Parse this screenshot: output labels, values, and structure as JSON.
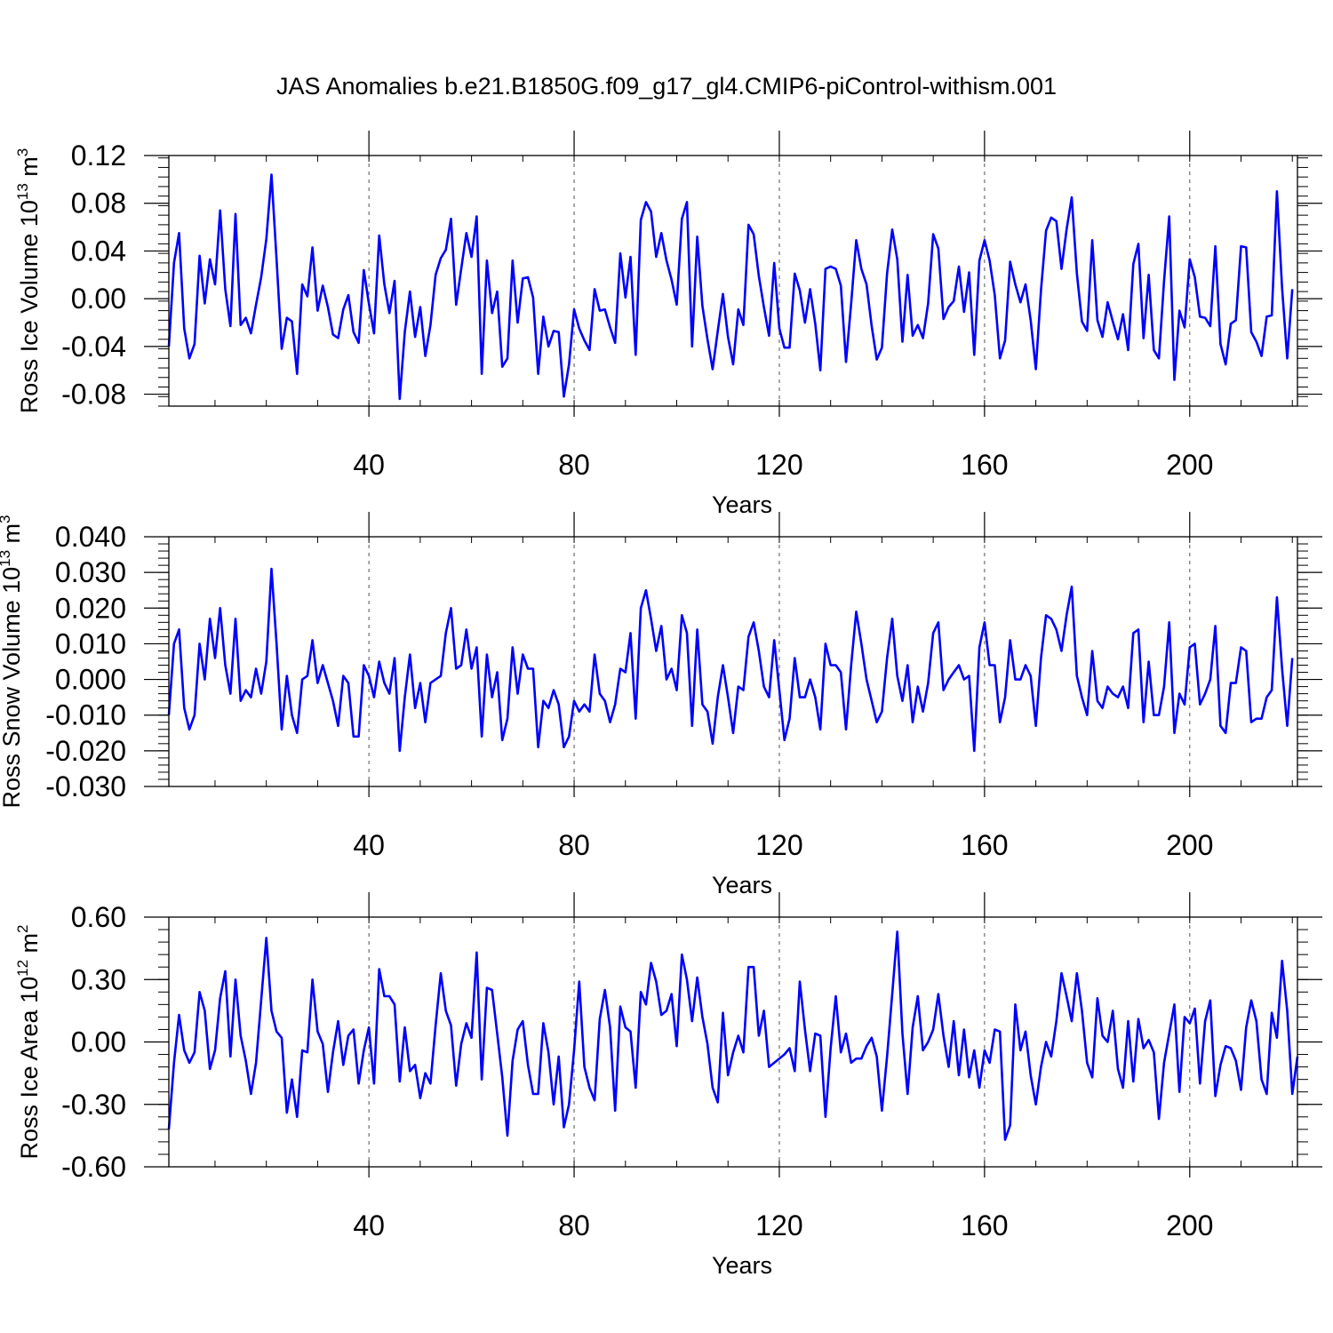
{
  "figure": {
    "title": "JAS Anomalies b.e21.B1850G.f09_g17_gl4.CMIP6-piControl-withism.001"
  },
  "style": {
    "line_color": "#0000ff",
    "axis_color": "#000000",
    "grid_color": "#555555"
  },
  "chart_data": [
    {
      "type": "line",
      "xlabel": "Years",
      "ylabel": "Ross Ice Volume 10",
      "ylabel_exp": "13",
      "ylabel_unit": " m",
      "ylabel_unit_exp": "3",
      "xlim": [
        1,
        221
      ],
      "ylim": [
        -0.09,
        0.12
      ],
      "xticks": [
        40,
        80,
        120,
        160,
        200
      ],
      "xtick_labels": [
        "40",
        "80",
        "120",
        "160",
        "200"
      ],
      "yticks": [
        -0.08,
        -0.04,
        0.0,
        0.04,
        0.08,
        0.12
      ],
      "ytick_labels": [
        "-0.08",
        "-0.04",
        "0.00",
        "0.04",
        "0.08",
        "0.12"
      ],
      "x_grid_dashed": true,
      "series": [
        {
          "values": [
            -0.04,
            0.03,
            0.055,
            -0.025,
            -0.05,
            -0.038,
            0.036,
            -0.004,
            0.033,
            0.012,
            0.074,
            0.008,
            -0.023,
            0.071,
            -0.022,
            -0.016,
            -0.029,
            -0.005,
            0.018,
            0.05,
            0.104,
            0.033,
            -0.042,
            -0.016,
            -0.019,
            -0.063,
            0.012,
            0.002,
            0.043,
            -0.01,
            0.011,
            -0.007,
            -0.03,
            -0.033,
            -0.009,
            0.003,
            -0.028,
            -0.037,
            0.024,
            -0.004,
            -0.029,
            0.053,
            0.012,
            -0.012,
            0.015,
            -0.084,
            -0.028,
            0.006,
            -0.032,
            -0.007,
            -0.048,
            -0.022,
            0.02,
            0.034,
            0.041,
            0.067,
            -0.005,
            0.025,
            0.055,
            0.035,
            0.069,
            -0.063,
            0.032,
            -0.012,
            0.006,
            -0.057,
            -0.05,
            0.032,
            -0.02,
            0.017,
            0.018,
            0.001,
            -0.063,
            -0.015,
            -0.04,
            -0.027,
            -0.028,
            -0.082,
            -0.055,
            -0.009,
            -0.025,
            -0.035,
            -0.043,
            0.008,
            -0.01,
            -0.009,
            -0.024,
            -0.037,
            0.038,
            0.001,
            0.035,
            -0.047,
            0.066,
            0.081,
            0.073,
            0.035,
            0.055,
            0.032,
            0.016,
            -0.005,
            0.067,
            0.081,
            -0.04,
            0.052,
            -0.006,
            -0.034,
            -0.059,
            -0.027,
            0.004,
            -0.032,
            -0.055,
            -0.009,
            -0.022,
            0.062,
            0.054,
            0.019,
            -0.007,
            -0.031,
            0.03,
            -0.025,
            -0.041,
            -0.041,
            0.021,
            0.007,
            -0.02,
            0.008,
            -0.021,
            -0.06,
            0.025,
            0.027,
            0.025,
            0.011,
            -0.053,
            -0.004,
            0.049,
            0.025,
            0.012,
            -0.023,
            -0.051,
            -0.041,
            0.021,
            0.058,
            0.033,
            -0.036,
            0.02,
            -0.031,
            -0.022,
            -0.033,
            -0.004,
            0.054,
            0.042,
            -0.017,
            -0.007,
            -0.002,
            0.027,
            -0.011,
            0.022,
            -0.047,
            0.032,
            0.049,
            0.032,
            0.003,
            -0.05,
            -0.035,
            0.031,
            0.012,
            -0.003,
            0.012,
            -0.018,
            -0.059,
            0.007,
            0.057,
            0.068,
            0.065,
            0.025,
            0.058,
            0.085,
            0.021,
            -0.019,
            -0.027,
            0.049,
            -0.018,
            -0.032,
            -0.003,
            -0.019,
            -0.034,
            -0.013,
            -0.043,
            0.029,
            0.046,
            -0.033,
            0.02,
            -0.043,
            -0.05,
            0.015,
            0.069,
            -0.068,
            -0.01,
            -0.024,
            0.033,
            0.018,
            -0.015,
            -0.016,
            -0.023,
            0.044,
            -0.038,
            -0.055,
            -0.021,
            -0.018,
            0.044,
            0.043,
            -0.028,
            -0.036,
            -0.048,
            -0.015,
            -0.014,
            0.09,
            0.009,
            -0.05,
            0.008
          ]
        }
      ]
    },
    {
      "type": "line",
      "xlabel": "Years",
      "ylabel": "Ross Snow Volume 10",
      "ylabel_exp": "13",
      "ylabel_unit": " m",
      "ylabel_unit_exp": "3",
      "xlim": [
        1,
        221
      ],
      "ylim": [
        -0.03,
        0.04
      ],
      "xticks": [
        40,
        80,
        120,
        160,
        200
      ],
      "xtick_labels": [
        "40",
        "80",
        "120",
        "160",
        "200"
      ],
      "yticks": [
        -0.03,
        -0.02,
        -0.01,
        0.0,
        0.01,
        0.02,
        0.03,
        0.04
      ],
      "ytick_labels": [
        "-0.030",
        "-0.020",
        "-0.010",
        "0.000",
        "0.010",
        "0.020",
        "0.030",
        "0.040"
      ],
      "x_grid_dashed": true,
      "series": [
        {
          "values": [
            -0.01,
            0.01,
            0.014,
            -0.008,
            -0.014,
            -0.01,
            0.01,
            0,
            0.017,
            0.006,
            0.02,
            0.004,
            -0.004,
            0.017,
            -0.006,
            -0.003,
            -0.005,
            0.003,
            -0.004,
            0.005,
            0.031,
            0.01,
            -0.014,
            0.001,
            -0.01,
            -0.015,
            0,
            0.001,
            0.011,
            -0.001,
            0.004,
            -0.001,
            -0.006,
            -0.013,
            0.001,
            -0.001,
            -0.016,
            -0.016,
            0.004,
            0.001,
            -0.005,
            0.005,
            -0.001,
            -0.004,
            0.006,
            -0.02,
            -0.005,
            0.007,
            -0.008,
            -0.001,
            -0.012,
            -0.001,
            0,
            0.001,
            0.013,
            0.02,
            0.003,
            0.004,
            0.014,
            0.003,
            0.009,
            -0.016,
            0.007,
            -0.005,
            0.002,
            -0.017,
            -0.011,
            0.009,
            -0.004,
            0.007,
            0.003,
            0.003,
            -0.019,
            -0.006,
            -0.008,
            -0.003,
            -0.007,
            -0.019,
            -0.016,
            -0.006,
            -0.009,
            -0.007,
            -0.009,
            0.007,
            -0.004,
            -0.006,
            -0.012,
            -0.007,
            0.003,
            0.002,
            0.013,
            -0.011,
            0.02,
            0.025,
            0.017,
            0.008,
            0.015,
            0,
            0.003,
            -0.003,
            0.018,
            0.013,
            -0.013,
            0.014,
            -0.007,
            -0.009,
            -0.018,
            -0.005,
            0.004,
            -0.005,
            -0.015,
            -0.002,
            -0.003,
            0.012,
            0.016,
            0.008,
            -0.002,
            -0.005,
            0.011,
            -0.003,
            -0.017,
            -0.011,
            0.006,
            -0.005,
            -0.005,
            0,
            -0.005,
            -0.014,
            0.01,
            0.004,
            0.004,
            0.002,
            -0.014,
            0.004,
            0.019,
            0.01,
            0,
            -0.006,
            -0.012,
            -0.009,
            0.006,
            0.017,
            0.001,
            -0.006,
            0.004,
            -0.012,
            -0.002,
            -0.009,
            -0.001,
            0.013,
            0.016,
            -0.003,
            0,
            0.002,
            0.004,
            0,
            0.001,
            -0.02,
            0.009,
            0.016,
            0.004,
            0.004,
            -0.012,
            -0.005,
            0.011,
            0,
            0,
            0.004,
            0.001,
            -0.013,
            0.006,
            0.018,
            0.017,
            0.014,
            0.008,
            0.018,
            0.026,
            0.001,
            -0.005,
            -0.01,
            0.008,
            -0.006,
            -0.008,
            -0.002,
            -0.004,
            -0.005,
            -0.002,
            -0.008,
            0.013,
            0.014,
            -0.012,
            0.005,
            -0.01,
            -0.01,
            -0.002,
            0.016,
            -0.015,
            -0.004,
            -0.007,
            0.009,
            0.01,
            -0.007,
            -0.004,
            0,
            0.015,
            -0.013,
            -0.015,
            -0.001,
            -0.001,
            0.009,
            0.008,
            -0.012,
            -0.011,
            -0.011,
            -0.005,
            -0.003,
            0.023,
            0.003,
            -0.013,
            0.006
          ]
        }
      ]
    },
    {
      "type": "line",
      "xlabel": "Years",
      "ylabel": "Ross Ice Area 10",
      "ylabel_exp": "12",
      "ylabel_unit": " m",
      "ylabel_unit_exp": "2",
      "xlim": [
        1,
        221
      ],
      "ylim": [
        -0.6,
        0.6
      ],
      "xticks": [
        40,
        80,
        120,
        160,
        200
      ],
      "xtick_labels": [
        "40",
        "80",
        "120",
        "160",
        "200"
      ],
      "yticks": [
        -0.6,
        -0.3,
        0.0,
        0.3,
        0.6
      ],
      "ytick_labels": [
        "-0.60",
        "-0.30",
        "0.00",
        "0.30",
        "0.60"
      ],
      "x_grid_dashed": true,
      "series": [
        {
          "values": [
            -0.42,
            -0.1,
            0.13,
            -0.04,
            -0.1,
            -0.05,
            0.24,
            0.15,
            -0.13,
            -0.04,
            0.21,
            0.34,
            -0.07,
            0.3,
            0.03,
            -0.09,
            -0.25,
            -0.1,
            0.2,
            0.5,
            0.15,
            0.05,
            0.02,
            -0.34,
            -0.18,
            -0.36,
            -0.04,
            -0.05,
            0.3,
            0.05,
            -0.01,
            -0.24,
            -0.05,
            0.1,
            -0.11,
            0.03,
            0.06,
            -0.2,
            -0.04,
            0.07,
            -0.2,
            0.35,
            0.22,
            0.22,
            0.18,
            -0.19,
            0.07,
            -0.14,
            -0.11,
            -0.27,
            -0.15,
            -0.2,
            0.08,
            0.33,
            0.15,
            0.08,
            -0.21,
            -0.01,
            0.09,
            0.02,
            0.43,
            -0.18,
            0.26,
            0.25,
            0.04,
            -0.17,
            -0.45,
            -0.09,
            0.06,
            0.1,
            -0.11,
            -0.25,
            -0.25,
            0.09,
            -0.05,
            -0.3,
            -0.07,
            -0.41,
            -0.3,
            -0.04,
            0.29,
            -0.12,
            -0.22,
            -0.28,
            0.11,
            0.25,
            0.07,
            -0.33,
            0.17,
            0.07,
            0.05,
            -0.22,
            0.24,
            0.18,
            0.38,
            0.29,
            0.13,
            0.15,
            0.23,
            -0.02,
            0.42,
            0.3,
            0.1,
            0.31,
            0.12,
            -0.01,
            -0.22,
            -0.29,
            0.14,
            -0.16,
            -0.05,
            0.03,
            -0.05,
            0.36,
            0.36,
            0.03,
            0.15,
            -0.12,
            -0.1,
            -0.08,
            -0.06,
            -0.03,
            -0.14,
            0.29,
            0.06,
            -0.14,
            0.04,
            0.03,
            -0.36,
            -0.03,
            0.22,
            -0.05,
            0.04,
            -0.1,
            -0.08,
            -0.08,
            -0.02,
            0.02,
            -0.07,
            -0.33,
            -0.07,
            0.23,
            0.53,
            0.04,
            -0.25,
            0.07,
            0.22,
            -0.04,
            0,
            0.06,
            0.23,
            0.03,
            -0.12,
            0.1,
            -0.16,
            0.06,
            -0.17,
            -0.04,
            -0.22,
            -0.04,
            -0.1,
            0.06,
            0.05,
            -0.47,
            -0.4,
            0.18,
            -0.04,
            0.05,
            -0.16,
            -0.3,
            -0.12,
            0,
            -0.07,
            0.1,
            0.33,
            0.22,
            0.1,
            0.33,
            0.15,
            -0.1,
            -0.17,
            0.21,
            0.03,
            0,
            0.15,
            -0.13,
            -0.22,
            0.1,
            -0.19,
            0.11,
            -0.03,
            0.01,
            -0.05,
            -0.37,
            -0.1,
            0.04,
            0.18,
            -0.24,
            0.12,
            0.09,
            0.16,
            -0.2,
            0.1,
            0.2,
            -0.26,
            -0.11,
            -0.02,
            -0.03,
            -0.09,
            -0.23,
            0.07,
            0.2,
            0.1,
            -0.18,
            -0.25,
            0.14,
            0.02,
            0.39,
            0.15,
            -0.25,
            -0.07
          ]
        }
      ]
    }
  ]
}
